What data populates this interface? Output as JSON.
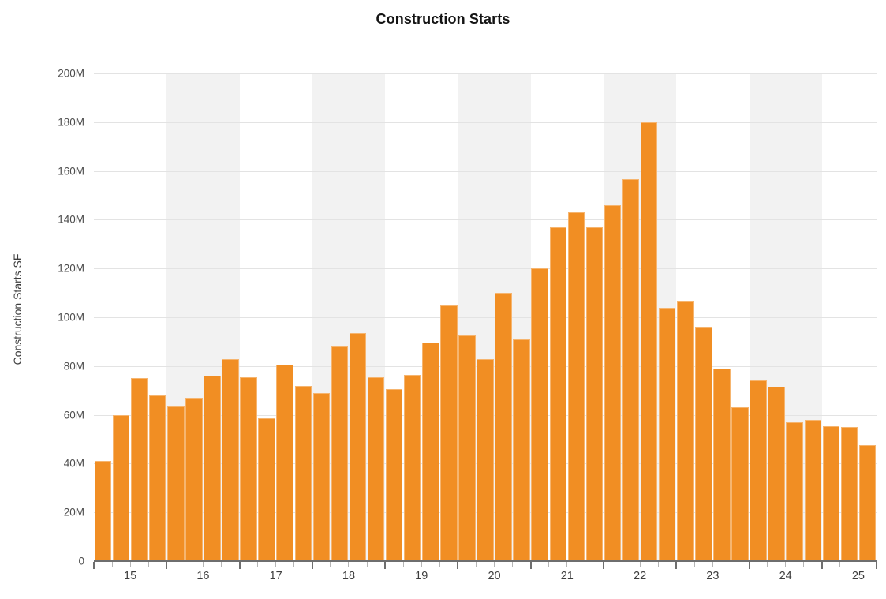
{
  "chart": {
    "title": "Construction Starts",
    "y_axis": {
      "label": "Construction Starts SF",
      "tick_labels": [
        "200M",
        "180M",
        "160M",
        "140M",
        "120M",
        "100M",
        "80M",
        "60M",
        "40M",
        "20M",
        "0"
      ]
    },
    "x_axis": {
      "tick_labels": [
        "15",
        "16",
        "17",
        "18",
        "19",
        "20",
        "21",
        "22",
        "23",
        "24",
        "25"
      ]
    }
  },
  "chart_data": {
    "type": "bar",
    "title": "Construction Starts",
    "xlabel": "",
    "ylabel": "Construction Starts SF",
    "unit": "million square feet",
    "ylim": [
      0,
      200
    ],
    "y_tick_step": 20,
    "grid": "horizontal",
    "legend": "none",
    "categories": [
      "2015 Q1",
      "2015 Q2",
      "2015 Q3",
      "2015 Q4",
      "2016 Q1",
      "2016 Q2",
      "2016 Q3",
      "2016 Q4",
      "2017 Q1",
      "2017 Q2",
      "2017 Q3",
      "2017 Q4",
      "2018 Q1",
      "2018 Q2",
      "2018 Q3",
      "2018 Q4",
      "2019 Q1",
      "2019 Q2",
      "2019 Q3",
      "2019 Q4",
      "2020 Q1",
      "2020 Q2",
      "2020 Q3",
      "2020 Q4",
      "2021 Q1",
      "2021 Q2",
      "2021 Q3",
      "2021 Q4",
      "2022 Q1",
      "2022 Q2",
      "2022 Q3",
      "2022 Q4",
      "2023 Q1",
      "2023 Q2",
      "2023 Q3",
      "2023 Q4",
      "2024 Q1",
      "2024 Q2",
      "2024 Q3",
      "2024 Q4",
      "2025 Q1",
      "2025 Q2",
      "2025 Q3"
    ],
    "values": [
      41,
      60,
      75,
      68,
      63.5,
      67,
      76,
      83,
      75.5,
      58.5,
      80.5,
      72,
      69,
      88,
      93.5,
      75.5,
      70.5,
      76.5,
      89.5,
      105,
      92.5,
      83,
      110,
      91,
      120,
      137,
      143,
      137,
      146,
      156.5,
      180,
      104,
      106.5,
      96,
      79,
      63,
      74,
      71.5,
      57,
      58,
      55.5,
      55,
      47.5
    ],
    "shaded_year_bands": [
      "16",
      "18",
      "20",
      "22",
      "24"
    ],
    "bars_per_year": 4,
    "colors": {
      "bar": "#F18E23",
      "band": "#F2F2F2",
      "gridline": "#E3E3E3",
      "axis_line": "#6E6E6E",
      "major_tick": "#6E6E6E",
      "minor_tick": "#B5B5B5"
    }
  }
}
